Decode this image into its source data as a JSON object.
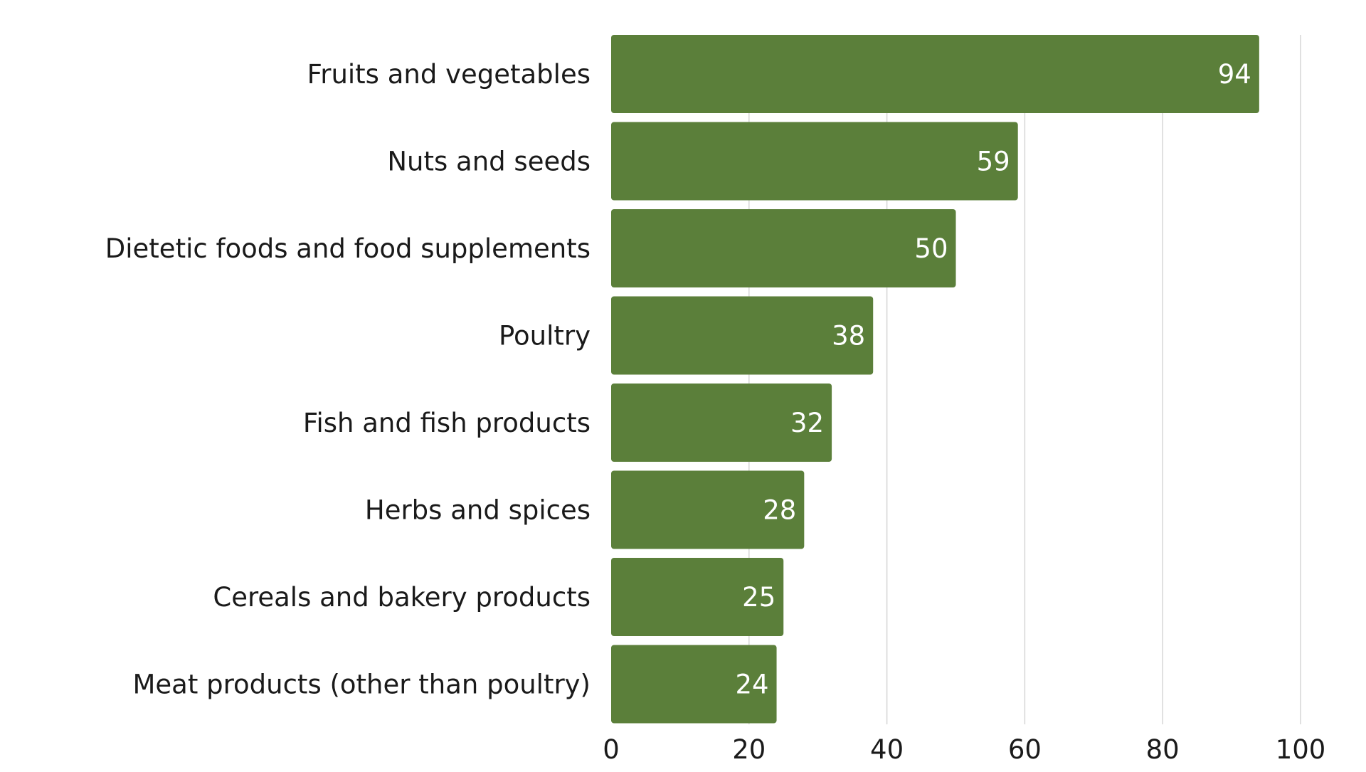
{
  "chart_data": {
    "type": "bar",
    "orientation": "horizontal",
    "title": "",
    "xlabel": "",
    "ylabel": "",
    "categories": [
      "Fruits and vegetables",
      "Nuts and seeds",
      "Dietetic foods and food supplements",
      "Poultry",
      "Fish and fish products",
      "Herbs and spices",
      "Cereals and bakery products",
      "Meat products (other than poultry)"
    ],
    "values": [
      94,
      59,
      50,
      38,
      32,
      28,
      25,
      24
    ],
    "xlim": [
      0,
      100
    ],
    "x_ticks": [
      "0",
      "20",
      "40",
      "60",
      "80",
      "100"
    ],
    "grid": true,
    "legend": "none",
    "bar_color": "#5b7f3a",
    "label_color": "#ffffff"
  }
}
